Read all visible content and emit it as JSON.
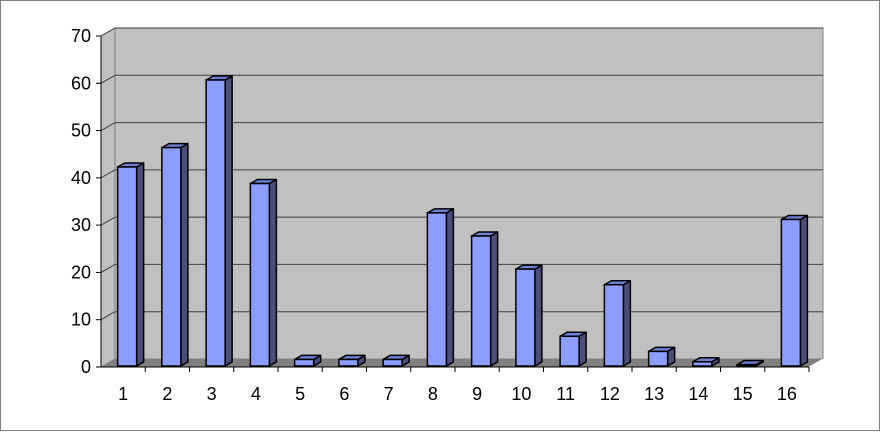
{
  "chart_data": {
    "type": "bar",
    "style": "3d-column",
    "title": "",
    "xlabel": "",
    "ylabel": "",
    "categories": [
      "1",
      "2",
      "3",
      "4",
      "5",
      "6",
      "7",
      "8",
      "9",
      "10",
      "11",
      "12",
      "13",
      "14",
      "15",
      "16"
    ],
    "values": [
      42.3,
      46.4,
      60.7,
      38.8,
      1.6,
      1.6,
      1.6,
      32.6,
      27.7,
      20.7,
      6.5,
      17.4,
      3.3,
      1.1,
      0.5,
      31.2
    ],
    "ylim": [
      0,
      70
    ],
    "yticks": [
      0,
      10,
      20,
      30,
      40,
      50,
      60,
      70
    ],
    "grid": true,
    "legend": "none",
    "colors": {
      "bar_front": "#8c9cff",
      "bar_side": "#4a4e78",
      "bar_top": "#7080d8",
      "wall": "#c0c0c0",
      "floor": "#808080"
    }
  }
}
